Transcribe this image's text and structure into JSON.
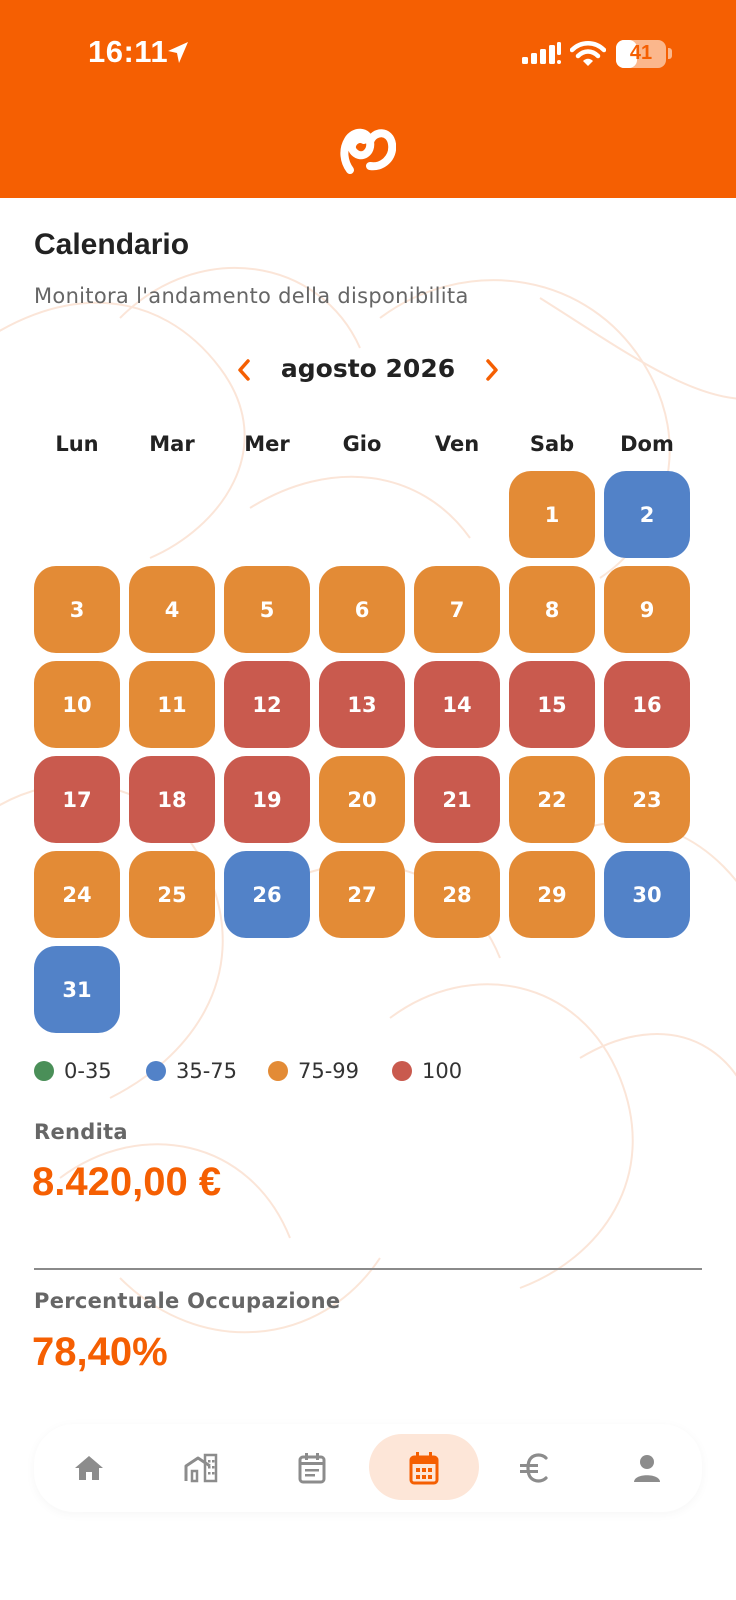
{
  "status_bar": {
    "time": "16:11",
    "battery": "41",
    "battery_level": 0.41
  },
  "page": {
    "title": "Calendario",
    "subtitle": "Monitora l'andamento della disponibilita"
  },
  "calendar": {
    "month_label": "agosto 2026",
    "weekdays": [
      "Lun",
      "Mar",
      "Mer",
      "Gio",
      "Ven",
      "Sab",
      "Dom"
    ],
    "first_weekday_index": 5,
    "days": [
      {
        "day": "1",
        "level": "75-99"
      },
      {
        "day": "2",
        "level": "35-75"
      },
      {
        "day": "3",
        "level": "75-99"
      },
      {
        "day": "4",
        "level": "75-99"
      },
      {
        "day": "5",
        "level": "75-99"
      },
      {
        "day": "6",
        "level": "75-99"
      },
      {
        "day": "7",
        "level": "75-99"
      },
      {
        "day": "8",
        "level": "75-99"
      },
      {
        "day": "9",
        "level": "75-99"
      },
      {
        "day": "10",
        "level": "75-99"
      },
      {
        "day": "11",
        "level": "75-99"
      },
      {
        "day": "12",
        "level": "100"
      },
      {
        "day": "13",
        "level": "100"
      },
      {
        "day": "14",
        "level": "100"
      },
      {
        "day": "15",
        "level": "100"
      },
      {
        "day": "16",
        "level": "100"
      },
      {
        "day": "17",
        "level": "100"
      },
      {
        "day": "18",
        "level": "100"
      },
      {
        "day": "19",
        "level": "100"
      },
      {
        "day": "20",
        "level": "75-99"
      },
      {
        "day": "21",
        "level": "100"
      },
      {
        "day": "22",
        "level": "75-99"
      },
      {
        "day": "23",
        "level": "75-99"
      },
      {
        "day": "24",
        "level": "75-99"
      },
      {
        "day": "25",
        "level": "75-99"
      },
      {
        "day": "26",
        "level": "35-75"
      },
      {
        "day": "27",
        "level": "75-99"
      },
      {
        "day": "28",
        "level": "75-99"
      },
      {
        "day": "29",
        "level": "75-99"
      },
      {
        "day": "30",
        "level": "35-75"
      },
      {
        "day": "31",
        "level": "35-75"
      }
    ]
  },
  "legend": [
    {
      "label": "0-35",
      "color": "#4a8f58"
    },
    {
      "label": "35-75",
      "color": "#5282c8"
    },
    {
      "label": "75-99",
      "color": "#e38b36"
    },
    {
      "label": "100",
      "color": "#c95a4e"
    }
  ],
  "stats": {
    "revenue_label": "Rendita",
    "revenue_value": "8.420,00 €",
    "occupancy_label": "Percentuale Occupazione",
    "occupancy_value": "78,40%"
  },
  "bottom_nav": [
    {
      "icon": "home-icon",
      "active": false
    },
    {
      "icon": "properties-icon",
      "active": false
    },
    {
      "icon": "bookings-icon",
      "active": false
    },
    {
      "icon": "calendar-icon",
      "active": true
    },
    {
      "icon": "euro-icon",
      "active": false
    },
    {
      "icon": "profile-icon",
      "active": false
    }
  ],
  "colors": {
    "brand": "#f55f02",
    "active_pill": "#fde6d8",
    "inactive_icon": "#8c8c8c"
  }
}
